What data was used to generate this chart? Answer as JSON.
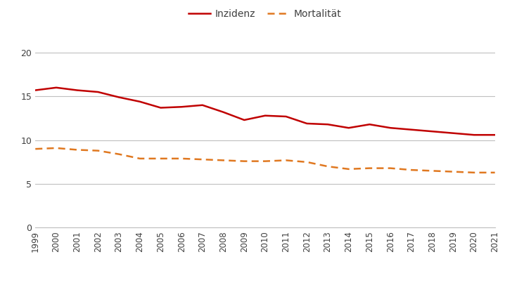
{
  "years": [
    1999,
    2000,
    2001,
    2002,
    2003,
    2004,
    2005,
    2006,
    2007,
    2008,
    2009,
    2010,
    2011,
    2012,
    2013,
    2014,
    2015,
    2016,
    2017,
    2018,
    2019,
    2020,
    2021
  ],
  "inzidenz": [
    15.7,
    16.0,
    15.7,
    15.5,
    14.9,
    14.4,
    13.7,
    13.8,
    14.0,
    13.2,
    12.3,
    12.8,
    12.7,
    11.9,
    11.8,
    11.4,
    11.8,
    11.4,
    11.2,
    11.0,
    10.8,
    10.6,
    10.6
  ],
  "mortalitat": [
    9.0,
    9.1,
    8.9,
    8.8,
    8.4,
    7.9,
    7.9,
    7.9,
    7.8,
    7.7,
    7.6,
    7.6,
    7.7,
    7.5,
    7.0,
    6.7,
    6.8,
    6.8,
    6.6,
    6.5,
    6.4,
    6.3,
    6.3
  ],
  "inzidenz_color": "#c00000",
  "mortalitat_color": "#e07820",
  "legend_inzidenz": "Inzidenz",
  "legend_mortalitat": "Mortalität",
  "ylim": [
    0,
    22
  ],
  "yticks": [
    0,
    5,
    10,
    15,
    20
  ],
  "background_color": "#ffffff",
  "grid_color": "#bfbfbf"
}
